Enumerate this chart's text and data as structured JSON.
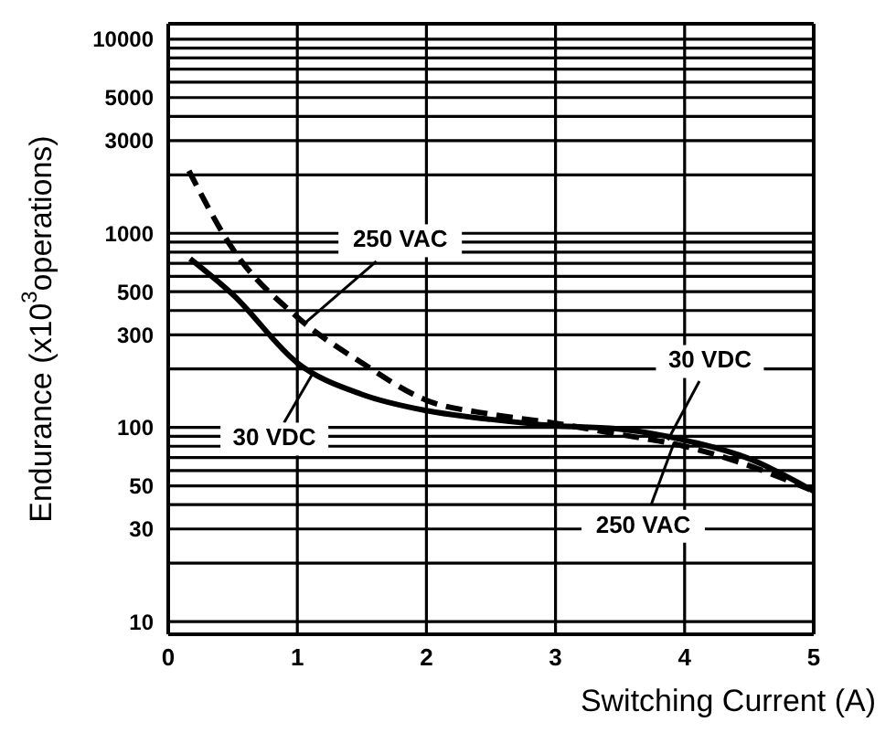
{
  "chart_data": {
    "type": "line",
    "xlabel": "Switching Current (A)",
    "ylabel": "Endurance (x10$^{3}$operations)",
    "log": "y",
    "grid": true,
    "legend": false,
    "marker": "none",
    "xlim": [
      0,
      5
    ],
    "xticks": [
      0,
      1,
      2,
      3,
      4,
      5
    ],
    "ylim": [
      8.6,
      12000
    ],
    "yticks": [
      10,
      {
        "value": 20,
        "label": null
      },
      30,
      {
        "value": 40,
        "label": null
      },
      50,
      {
        "value": 60,
        "label": null
      },
      {
        "value": 70,
        "label": null
      },
      {
        "value": 80,
        "label": null
      },
      {
        "value": 90,
        "label": null
      },
      100,
      {
        "value": 200,
        "label": null
      },
      300,
      {
        "value": 400,
        "label": null
      },
      500,
      {
        "value": 600,
        "label": null
      },
      {
        "value": 700,
        "label": null
      },
      {
        "value": 800,
        "label": null
      },
      {
        "value": 900,
        "label": null
      },
      1000,
      {
        "value": 2000,
        "label": null
      },
      3000,
      {
        "value": 4000,
        "label": null
      },
      5000,
      {
        "value": 6000,
        "label": null
      },
      {
        "value": 7000,
        "label": null
      },
      {
        "value": 8000,
        "label": null
      },
      {
        "value": 9000,
        "label": null
      },
      10000
    ],
    "series": [
      {
        "color": "#000000",
        "line_style": "dashed",
        "x": [
          0.16,
          0.5,
          1,
          1.5,
          2,
          2.5,
          3,
          3.5,
          4,
          4.4,
          5
        ],
        "values": [
          2100,
          830,
          370,
          215,
          138,
          117,
          105,
          92,
          80,
          67,
          47
        ]
      },
      {
        "color": "#000000",
        "line_style": "solid",
        "x": [
          0.17,
          0.5,
          1,
          1.5,
          2,
          2.5,
          3,
          3.5,
          4,
          4.5,
          5
        ],
        "values": [
          740,
          484,
          215,
          148,
          122,
          110,
          102,
          98,
          86,
          69,
          47
        ]
      }
    ],
    "annotations": [
      {
        "text": "250 VAC",
        "x": 1.06,
        "y": 345
      },
      {
        "text": "30 VDC",
        "x": 1.12,
        "y": 190
      },
      {
        "text": "30 VDC",
        "x": 3.87,
        "y": 86
      },
      {
        "text": "250 VAC",
        "x": 3.92,
        "y": 84
      }
    ]
  }
}
